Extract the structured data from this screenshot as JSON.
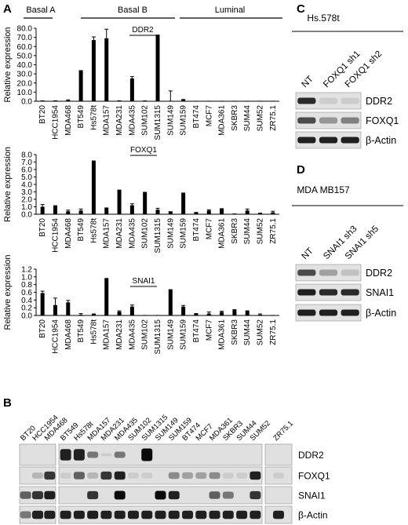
{
  "panels": {
    "A": "A",
    "B": "B",
    "C": "C",
    "D": "D"
  },
  "groups": [
    {
      "name": "Basal A",
      "cells": [
        "BT20",
        "HCC1954",
        "MDA468"
      ]
    },
    {
      "name": "Basal B",
      "cells": [
        "BT549",
        "Hs578t",
        "MDA157",
        "MDA231",
        "MDA435",
        "SUM102",
        "SUM1315",
        "SUM149",
        "SUM159"
      ]
    },
    {
      "name": "Luminal",
      "cells": [
        "BT474",
        "MCF7",
        "MDA361",
        "SKBR3",
        "SUM44",
        "SUM52",
        "ZR75.1"
      ]
    }
  ],
  "cell_lines": [
    "BT20",
    "HCC1954",
    "MDA468",
    "BT549",
    "Hs578t",
    "MDA157",
    "MDA231",
    "MDA435",
    "SUM102",
    "SUM1315",
    "SUM149",
    "SUM159",
    "BT474",
    "MCF7",
    "MDA361",
    "SKBR3",
    "SUM44",
    "SUM52",
    "ZR75.1"
  ],
  "chart_data": [
    {
      "type": "bar",
      "title": "DDR2",
      "ylabel": "Relative expression",
      "ylim": [
        0,
        80
      ],
      "yticks": [
        "0.0",
        "10.0",
        "20.0",
        "30.0",
        "40.0",
        "50.0",
        "60.0",
        "70.0",
        "80.0"
      ],
      "categories": [
        "BT20",
        "HCC1954",
        "MDA468",
        "BT549",
        "Hs578t",
        "MDA157",
        "MDA231",
        "MDA435",
        "SUM102",
        "SUM1315",
        "SUM149",
        "SUM159",
        "BT474",
        "MCF7",
        "MDA361",
        "SKBR3",
        "SUM44",
        "SUM52",
        "ZR75.1"
      ],
      "values": [
        0.3,
        0.3,
        1.0,
        34.0,
        67.0,
        69.0,
        0.3,
        25.0,
        0.2,
        73.0,
        0.3,
        1.5,
        0.2,
        0.1,
        0.2,
        0.2,
        0.1,
        0.1,
        0.1
      ],
      "errors": [
        0.2,
        0.2,
        0.5,
        0,
        3.5,
        10,
        0.2,
        2.0,
        0.2,
        0,
        11,
        0.5,
        0,
        0,
        0,
        0,
        0,
        0,
        0
      ]
    },
    {
      "type": "bar",
      "title": "FOXQ1",
      "ylabel": "Relative expression",
      "ylim": [
        0,
        8
      ],
      "yticks": [
        "0.0",
        "1.0",
        "2.0",
        "3.0",
        "4.0",
        "5.0",
        "6.0",
        "7.0",
        "8.0"
      ],
      "categories": [
        "BT20",
        "HCC1954",
        "MDA468",
        "BT549",
        "Hs578t",
        "MDA157",
        "MDA231",
        "MDA435",
        "SUM102",
        "SUM1315",
        "SUM149",
        "SUM159",
        "BT474",
        "MCF7",
        "MDA361",
        "SKBR3",
        "SUM44",
        "SUM52",
        "ZR75.1"
      ],
      "values": [
        1.0,
        1.2,
        0.4,
        0.5,
        7.2,
        0.9,
        3.3,
        1.2,
        3.0,
        0.6,
        0.4,
        2.9,
        0.3,
        0.5,
        0.8,
        0.1,
        0.5,
        0.2,
        0.25
      ],
      "errors": [
        0.3,
        0,
        0.15,
        0.2,
        0,
        0,
        0,
        0.2,
        0,
        0.2,
        0,
        0,
        0,
        0.1,
        0,
        0,
        0.2,
        0,
        0.15
      ]
    },
    {
      "type": "bar",
      "title": "SNAI1",
      "ylabel": "Relative expression",
      "ylim": [
        0,
        1.2
      ],
      "yticks": [
        "0.0",
        "0.2",
        "0.4",
        "0.6",
        "0.8",
        "1.0",
        "1.2"
      ],
      "categories": [
        "BT20",
        "HCC1954",
        "MDA468",
        "BT549",
        "Hs578t",
        "MDA157",
        "MDA231",
        "MDA435",
        "SUM102",
        "SUM1315",
        "SUM149",
        "SUM159",
        "BT474",
        "MCF7",
        "MDA361",
        "SKBR3",
        "SUM44",
        "SUM52",
        "ZR75.1"
      ],
      "values": [
        0.58,
        0.27,
        0.34,
        0.02,
        0.03,
        0.97,
        0.1,
        0.23,
        0.01,
        0.01,
        0.68,
        0.23,
        0.06,
        0.05,
        0.09,
        0.16,
        0.13,
        0.02,
        0.01
      ],
      "errors": [
        0.05,
        0.18,
        0.05,
        0.03,
        0.01,
        0,
        0.02,
        0.04,
        0,
        0,
        0,
        0.03,
        0,
        0.04,
        0.02,
        0,
        0,
        0.02,
        0
      ]
    }
  ],
  "blot_b": {
    "lanes": [
      "BT20",
      "HCC1954",
      "MDA468",
      "BT549",
      "Hs578t",
      "MDA157",
      "MDA231",
      "MDA435",
      "SUM102",
      "SUM1315",
      "SUM149",
      "SUM159",
      "BT474",
      "MCF7",
      "MDA361",
      "SKBR3",
      "SUM44",
      "SUM52",
      "ZR75.1"
    ],
    "rows": [
      {
        "label": "DDR2",
        "intensity": [
          0,
          0,
          0,
          0.9,
          0.9,
          0.5,
          0.1,
          0.5,
          0,
          1,
          0,
          0,
          0,
          0,
          0,
          0,
          0,
          0,
          0
        ]
      },
      {
        "label": "FOXQ1",
        "intensity": [
          0,
          0.2,
          0.8,
          0.1,
          0.6,
          0.2,
          0.8,
          0.9,
          0.1,
          0.1,
          0,
          0.4,
          0.3,
          0.3,
          0.4,
          0.1,
          0.1,
          0.9,
          0.1
        ]
      },
      {
        "label": "SNAI1",
        "intensity": [
          0.6,
          0.8,
          0.9,
          0,
          0,
          0.8,
          0,
          1,
          0,
          0,
          1,
          0.9,
          0,
          0,
          0.6,
          0.5,
          0,
          0.8,
          0
        ]
      },
      {
        "label": "β-Actin",
        "intensity": [
          0.5,
          0.9,
          0.9,
          0.9,
          0.9,
          0.9,
          0.9,
          0.9,
          0.9,
          0.9,
          0.9,
          0.9,
          0.9,
          0.9,
          0.9,
          0.9,
          0.9,
          0.9,
          0.9
        ]
      }
    ]
  },
  "blot_c": {
    "title": "Hs.578t",
    "lanes": [
      "NT",
      "FOXQ1 sh1",
      "FOXQ1 sh2"
    ],
    "rows": [
      {
        "label": "DDR2",
        "intensity": [
          0.85,
          0.1,
          0.1
        ]
      },
      {
        "label": "FOXQ1",
        "intensity": [
          0.7,
          0.35,
          0.45
        ]
      },
      {
        "label": "β-Actin",
        "intensity": [
          0.9,
          0.9,
          0.9
        ]
      }
    ]
  },
  "blot_d": {
    "title": "MDA MB157",
    "lanes": [
      "NT",
      "SNAI1 sh3",
      "SNAI1 sh5"
    ],
    "rows": [
      {
        "label": "DDR2",
        "intensity": [
          0.7,
          0.3,
          0.15
        ]
      },
      {
        "label": "SNAI1",
        "intensity": [
          0.9,
          0.85,
          0.85
        ]
      },
      {
        "label": "β-Actin",
        "intensity": [
          0.9,
          0.9,
          0.9
        ]
      }
    ]
  }
}
